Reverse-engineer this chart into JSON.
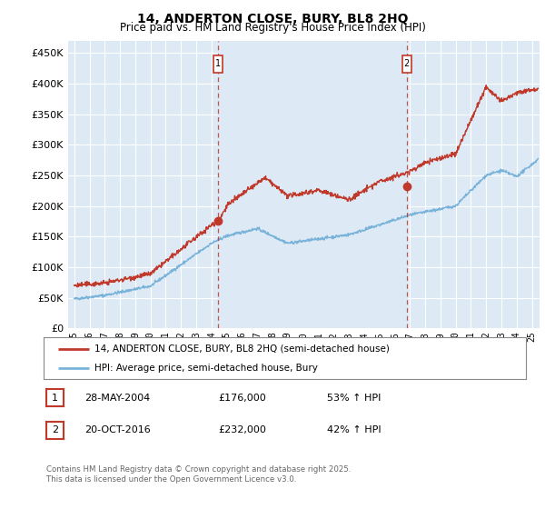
{
  "title": "14, ANDERTON CLOSE, BURY, BL8 2HQ",
  "subtitle": "Price paid vs. HM Land Registry's House Price Index (HPI)",
  "ylabel_ticks": [
    "£0",
    "£50K",
    "£100K",
    "£150K",
    "£200K",
    "£250K",
    "£300K",
    "£350K",
    "£400K",
    "£450K"
  ],
  "ytick_values": [
    0,
    50000,
    100000,
    150000,
    200000,
    250000,
    300000,
    350000,
    400000,
    450000
  ],
  "ylim": [
    0,
    470000
  ],
  "xlim_start": 1994.6,
  "xlim_end": 2025.5,
  "hpi_color": "#7ab3d9",
  "price_color": "#c0392b",
  "vline_color": "#c0392b",
  "shade_color": "#ddeaf5",
  "marker1_x": 2004.41,
  "marker1_y": 176000,
  "marker1_label": "1",
  "marker2_x": 2016.8,
  "marker2_y": 232000,
  "marker2_label": "2",
  "legend_line1": "14, ANDERTON CLOSE, BURY, BL8 2HQ (semi-detached house)",
  "legend_line2": "HPI: Average price, semi-detached house, Bury",
  "annotation1": [
    "1",
    "28-MAY-2004",
    "£176,000",
    "53% ↑ HPI"
  ],
  "annotation2": [
    "2",
    "20-OCT-2016",
    "£232,000",
    "42% ↑ HPI"
  ],
  "footer": "Contains HM Land Registry data © Crown copyright and database right 2025.\nThis data is licensed under the Open Government Licence v3.0.",
  "plot_bg_color": "#ddeaf5",
  "grid_color": "#ffffff",
  "fig_bg_color": "#ffffff"
}
